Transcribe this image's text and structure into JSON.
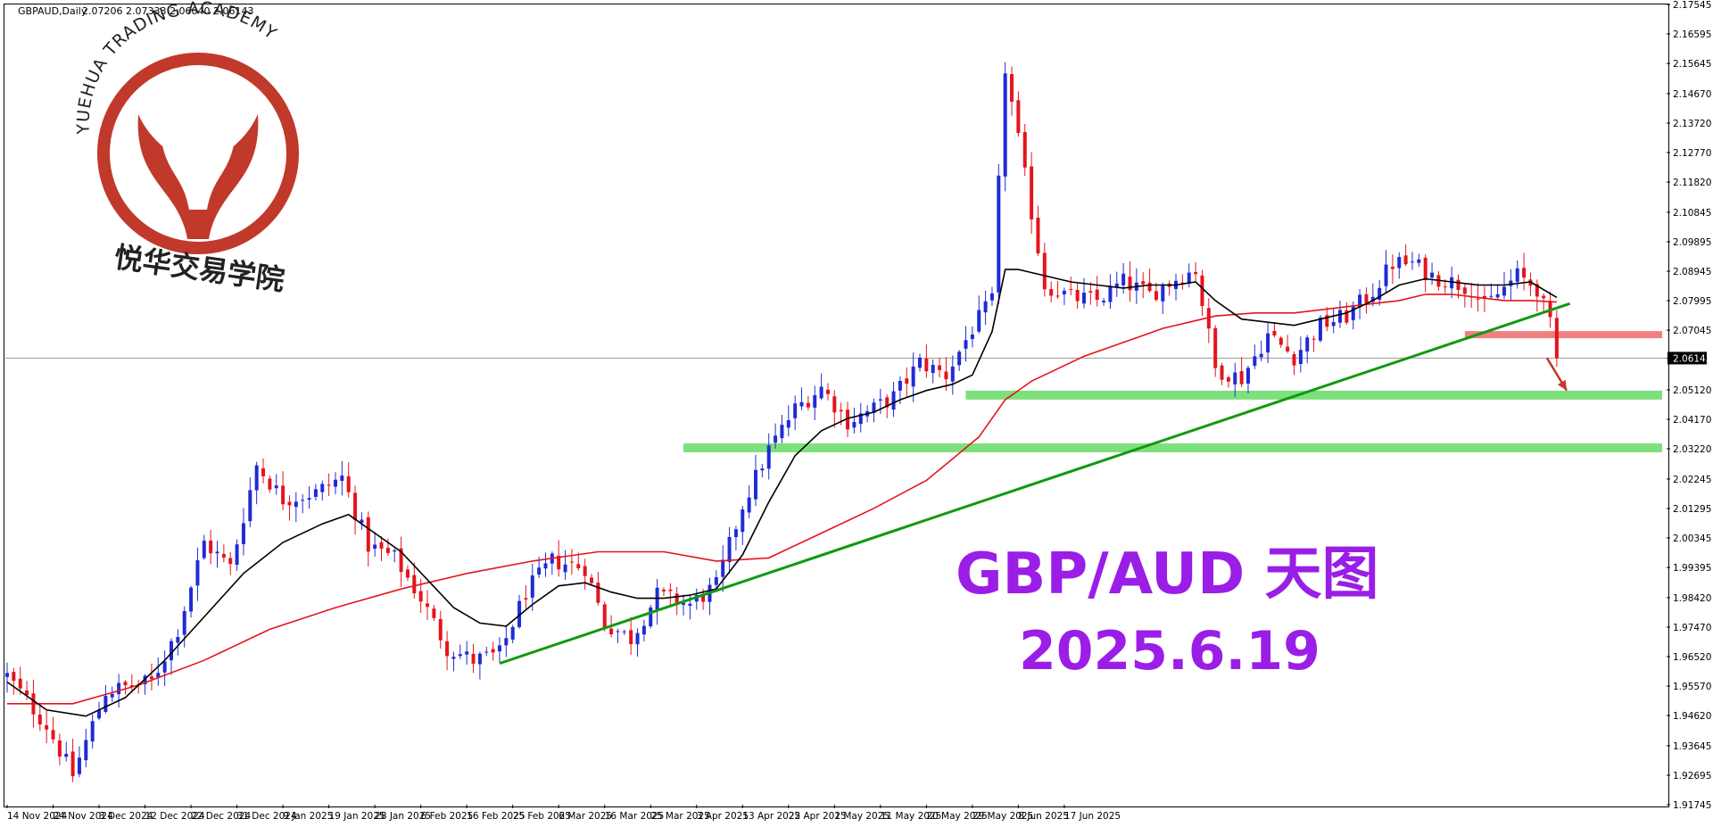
{
  "header": {
    "symbol_text": "GBPAUD,Daily",
    "ohlc_text": "2.07206 2.07333 2.06040 2.06143"
  },
  "logo": {
    "english_text": "YUEHUA TRADING ACADEMY",
    "chinese_text": "悦华交易学院",
    "color": "#c0392b"
  },
  "annotation": {
    "title": "GBP/AUD 天图",
    "date": "2025.6.19",
    "color": "#9a1ee6"
  },
  "chart_data": {
    "type": "candlestick",
    "title": "GBPAUD,Daily",
    "ylim": [
      1.91745,
      2.17545
    ],
    "y_ticks": [
      "2.17545",
      "2.16595",
      "2.15645",
      "2.14670",
      "2.13720",
      "2.12770",
      "2.11820",
      "2.10845",
      "2.09895",
      "2.08945",
      "2.07995",
      "2.07045",
      "2.06143",
      "2.05120",
      "2.04170",
      "2.03220",
      "2.02245",
      "2.01295",
      "2.00345",
      "1.99395",
      "1.98420",
      "1.97470",
      "1.96520",
      "1.95570",
      "1.94620",
      "1.93645",
      "1.92695",
      "1.91745"
    ],
    "x_ticks": [
      "14 Nov 2024",
      "24 Nov 2024",
      "3 Dec 2024",
      "12 Dec 2024",
      "22 Dec 2024",
      "31 Dec 2024",
      "9 Jan 2025",
      "19 Jan 2025",
      "28 Jan 2025",
      "6 Feb 2025",
      "16 Feb 2025",
      "25 Feb 2025",
      "6 Mar 2025",
      "16 Mar 2025",
      "25 Mar 2025",
      "3 Apr 2025",
      "13 Apr 2025",
      "22 Apr 2025",
      "1 May 2025",
      "11 May 2025",
      "20 May 2025",
      "29 May 2025",
      "8 Jun 2025",
      "17 Jun 2025"
    ],
    "current_price": "2.06143",
    "colors": {
      "bull": "#1f2bd6",
      "bear": "#e5141c",
      "ma_fast": "#000000",
      "ma_slow": "#e5141c",
      "trendline": "#119911",
      "support": "#7de07d",
      "resistance": "#f07f7f",
      "arrow": "#c0392b"
    },
    "anchor_pts": [
      [
        0,
        1.959
      ],
      [
        6,
        1.943
      ],
      [
        10,
        1.927
      ],
      [
        15,
        1.954
      ],
      [
        22,
        1.957
      ],
      [
        26,
        1.974
      ],
      [
        30,
        2.002
      ],
      [
        34,
        1.994
      ],
      [
        38,
        2.027
      ],
      [
        42,
        2.016
      ],
      [
        47,
        2.018
      ],
      [
        51,
        2.023
      ],
      [
        55,
        2.001
      ],
      [
        59,
        1.997
      ],
      [
        63,
        1.984
      ],
      [
        67,
        1.968
      ],
      [
        71,
        1.964
      ],
      [
        75,
        1.966
      ],
      [
        79,
        1.986
      ],
      [
        83,
        1.996
      ],
      [
        88,
        1.994
      ],
      [
        91,
        1.976
      ],
      [
        95,
        1.971
      ],
      [
        99,
        1.985
      ],
      [
        104,
        1.982
      ],
      [
        108,
        1.988
      ],
      [
        112,
        2.014
      ],
      [
        116,
        2.032
      ],
      [
        120,
        2.045
      ],
      [
        124,
        2.052
      ],
      [
        128,
        2.041
      ],
      [
        132,
        2.045
      ],
      [
        135,
        2.049
      ],
      [
        139,
        2.06
      ],
      [
        143,
        2.056
      ],
      [
        147,
        2.071
      ],
      [
        150,
        2.08
      ],
      [
        152,
        2.155
      ],
      [
        155,
        2.12
      ],
      [
        158,
        2.085
      ],
      [
        162,
        2.081
      ],
      [
        166,
        2.08
      ],
      [
        170,
        2.086
      ],
      [
        174,
        2.082
      ],
      [
        178,
        2.087
      ],
      [
        181,
        2.09
      ],
      [
        184,
        2.058
      ],
      [
        188,
        2.055
      ],
      [
        192,
        2.069
      ],
      [
        196,
        2.062
      ],
      [
        200,
        2.072
      ],
      [
        204,
        2.075
      ],
      [
        208,
        2.083
      ],
      [
        211,
        2.092
      ],
      [
        214,
        2.092
      ],
      [
        217,
        2.088
      ],
      [
        220,
        2.086
      ],
      [
        223,
        2.084
      ],
      [
        225,
        2.078
      ],
      [
        228,
        2.084
      ],
      [
        230,
        2.088
      ],
      [
        233,
        2.084
      ],
      [
        235,
        2.072
      ],
      [
        236,
        2.0614
      ]
    ],
    "ma_fast_pts": [
      [
        0,
        1.957
      ],
      [
        6,
        1.948
      ],
      [
        12,
        1.946
      ],
      [
        18,
        1.952
      ],
      [
        24,
        1.964
      ],
      [
        30,
        1.978
      ],
      [
        36,
        1.992
      ],
      [
        42,
        2.002
      ],
      [
        48,
        2.008
      ],
      [
        52,
        2.011
      ],
      [
        56,
        2.005
      ],
      [
        60,
        1.999
      ],
      [
        64,
        1.99
      ],
      [
        68,
        1.981
      ],
      [
        72,
        1.976
      ],
      [
        76,
        1.975
      ],
      [
        80,
        1.982
      ],
      [
        84,
        1.988
      ],
      [
        88,
        1.989
      ],
      [
        92,
        1.986
      ],
      [
        96,
        1.984
      ],
      [
        100,
        1.984
      ],
      [
        104,
        1.985
      ],
      [
        108,
        1.987
      ],
      [
        112,
        1.998
      ],
      [
        116,
        2.015
      ],
      [
        120,
        2.03
      ],
      [
        124,
        2.038
      ],
      [
        128,
        2.042
      ],
      [
        132,
        2.044
      ],
      [
        136,
        2.048
      ],
      [
        140,
        2.051
      ],
      [
        144,
        2.053
      ],
      [
        147,
        2.056
      ],
      [
        150,
        2.07
      ],
      [
        152,
        2.09
      ],
      [
        154,
        2.09
      ],
      [
        158,
        2.088
      ],
      [
        162,
        2.086
      ],
      [
        166,
        2.085
      ],
      [
        170,
        2.084
      ],
      [
        174,
        2.085
      ],
      [
        178,
        2.085
      ],
      [
        181,
        2.086
      ],
      [
        184,
        2.08
      ],
      [
        188,
        2.074
      ],
      [
        192,
        2.073
      ],
      [
        196,
        2.072
      ],
      [
        200,
        2.074
      ],
      [
        204,
        2.076
      ],
      [
        208,
        2.08
      ],
      [
        212,
        2.085
      ],
      [
        216,
        2.087
      ],
      [
        220,
        2.086
      ],
      [
        224,
        2.085
      ],
      [
        228,
        2.085
      ],
      [
        232,
        2.086
      ],
      [
        236,
        2.081
      ]
    ],
    "ma_slow_pts": [
      [
        0,
        1.95
      ],
      [
        10,
        1.95
      ],
      [
        20,
        1.956
      ],
      [
        30,
        1.964
      ],
      [
        40,
        1.974
      ],
      [
        50,
        1.981
      ],
      [
        60,
        1.987
      ],
      [
        70,
        1.992
      ],
      [
        80,
        1.996
      ],
      [
        90,
        1.999
      ],
      [
        100,
        1.999
      ],
      [
        108,
        1.996
      ],
      [
        116,
        1.997
      ],
      [
        124,
        2.005
      ],
      [
        132,
        2.013
      ],
      [
        140,
        2.022
      ],
      [
        144,
        2.029
      ],
      [
        148,
        2.036
      ],
      [
        152,
        2.048
      ],
      [
        156,
        2.054
      ],
      [
        160,
        2.058
      ],
      [
        164,
        2.062
      ],
      [
        168,
        2.065
      ],
      [
        172,
        2.068
      ],
      [
        176,
        2.071
      ],
      [
        180,
        2.073
      ],
      [
        184,
        2.075
      ],
      [
        190,
        2.076
      ],
      [
        196,
        2.076
      ],
      [
        200,
        2.077
      ],
      [
        204,
        2.078
      ],
      [
        208,
        2.079
      ],
      [
        212,
        2.08
      ],
      [
        216,
        2.082
      ],
      [
        220,
        2.082
      ],
      [
        224,
        2.081
      ],
      [
        228,
        2.08
      ],
      [
        232,
        2.08
      ],
      [
        236,
        2.0795
      ]
    ],
    "trendline": [
      [
        75,
        1.963
      ],
      [
        238,
        2.079
      ]
    ],
    "support_zones": [
      {
        "price": 2.0325,
        "from": 103,
        "to": 240
      },
      {
        "price": 2.0495,
        "from": 146,
        "to": 240
      }
    ],
    "resistance_zones": [
      {
        "price": 2.069,
        "from": 222,
        "to": 240
      }
    ],
    "arrow": {
      "from": [
        234.5,
        2.0615
      ],
      "to": [
        237.5,
        2.051
      ]
    }
  }
}
